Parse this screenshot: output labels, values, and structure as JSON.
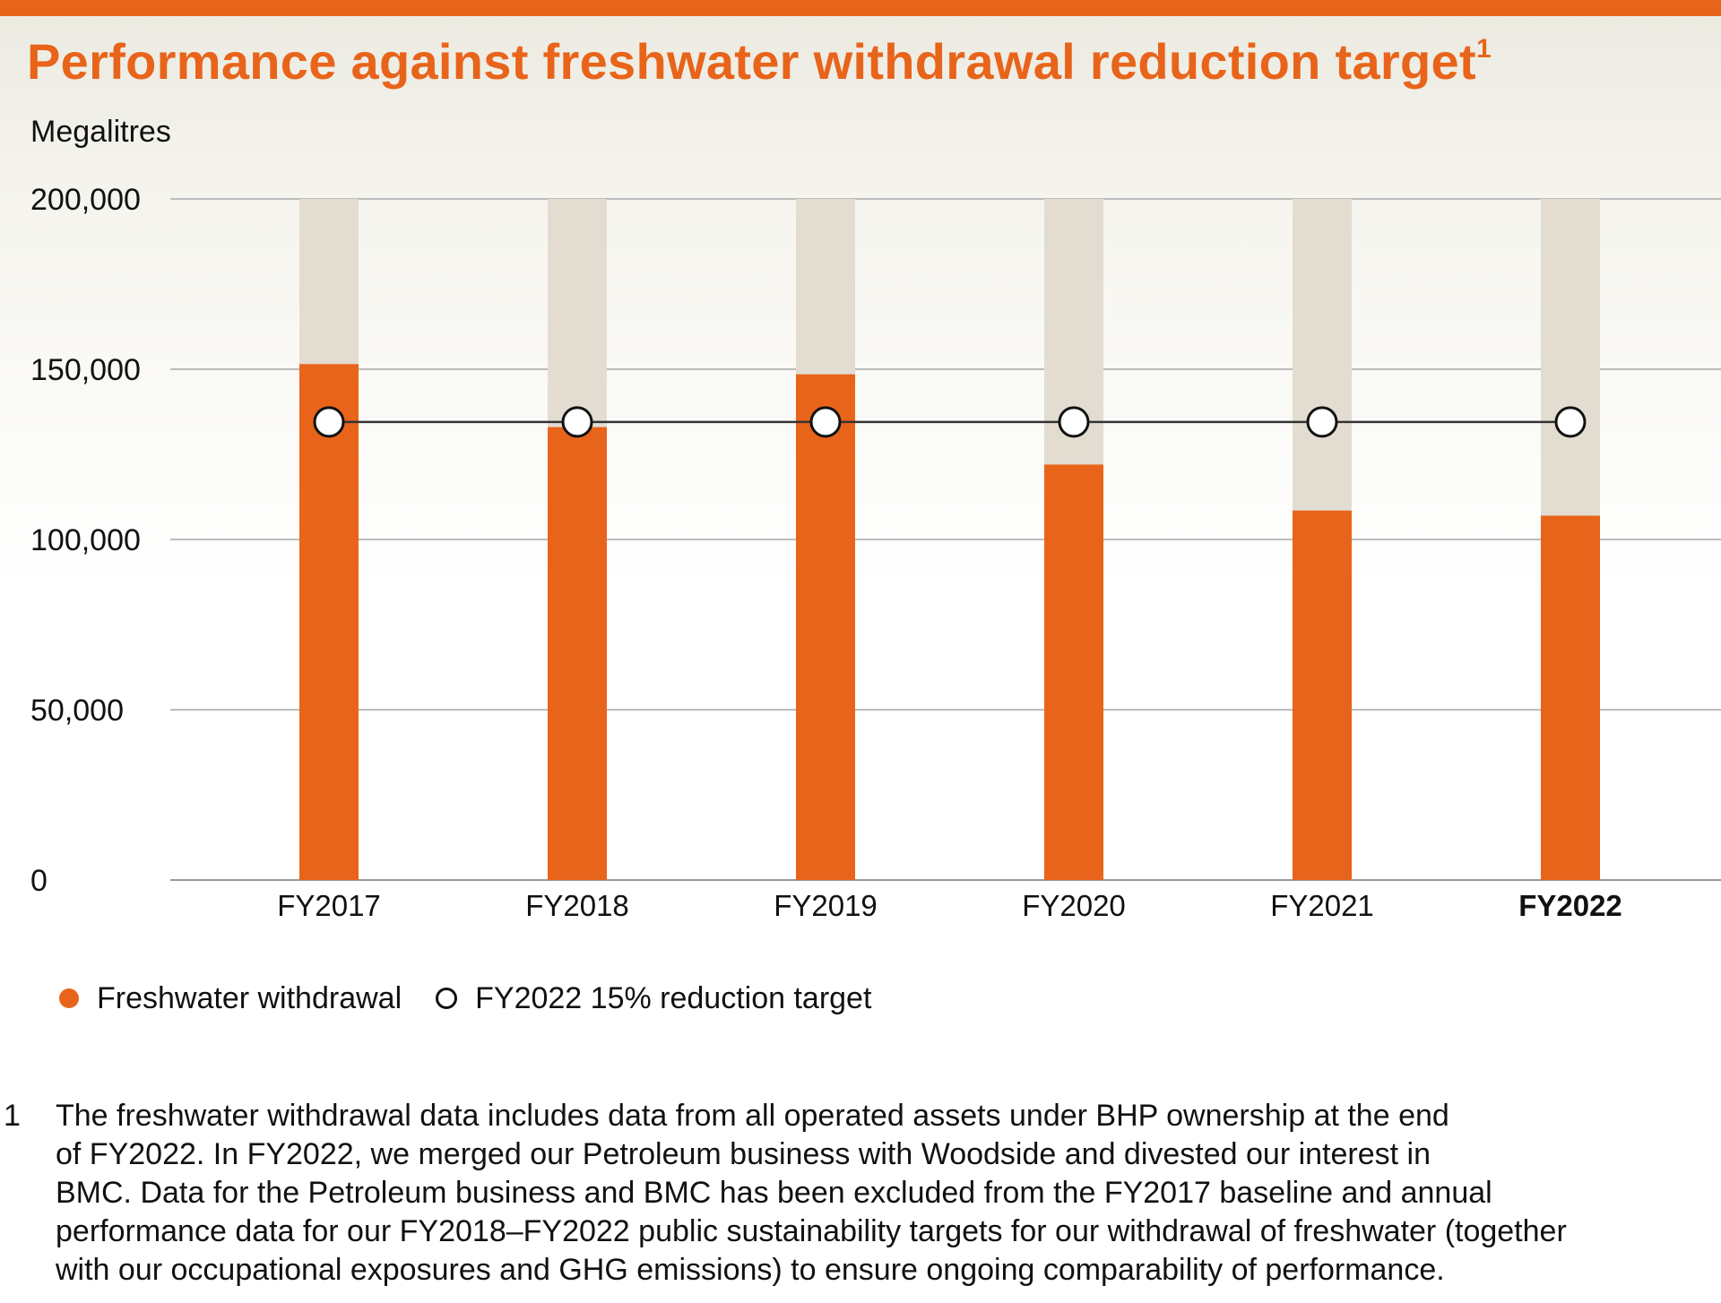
{
  "title": "Performance against freshwater withdrawal reduction target",
  "title_superscript": "1",
  "colors": {
    "accent": "#e8641a",
    "bar_background": "#e2ddd0",
    "target_line": "#333333",
    "gridline": "#bcbcbc"
  },
  "chart_data": {
    "type": "bar",
    "ylabel": "Megalitres",
    "ylim": [
      0,
      200000
    ],
    "yticks": [
      0,
      50000,
      100000,
      150000,
      200000
    ],
    "ytick_labels": [
      "0",
      "50,000",
      "100,000",
      "150,000",
      "200,000"
    ],
    "categories": [
      "FY2017",
      "FY2018",
      "FY2019",
      "FY2020",
      "FY2021",
      "FY2022"
    ],
    "highlight_category": "FY2022",
    "grid": true,
    "series": [
      {
        "name": "Freshwater withdrawal",
        "kind": "bar",
        "values": [
          151500,
          133000,
          148500,
          122000,
          108500,
          107000
        ]
      },
      {
        "name": "FY2022 15% reduction target",
        "kind": "line-hollow-markers",
        "values": [
          134500,
          134500,
          134500,
          134500,
          134500,
          134500
        ]
      }
    ],
    "legend_position": "bottom-left"
  },
  "legend": [
    {
      "label": "Freshwater withdrawal",
      "marker": "filled-circle"
    },
    {
      "label": "FY2022 15% reduction target",
      "marker": "hollow-circle"
    }
  ],
  "footnote": {
    "marker": "1",
    "lines": [
      "The freshwater withdrawal data includes data from all operated assets under BHP ownership at the end",
      "of FY2022. In FY2022, we merged our Petroleum business with Woodside and divested our interest in",
      "BMC. Data for the Petroleum business and BMC has been excluded from the FY2017 baseline and annual",
      "performance data for our FY2018–FY2022 public sustainability targets for our withdrawal of freshwater (together",
      "with our occupational exposures and GHG emissions) to ensure ongoing comparability of performance."
    ]
  }
}
